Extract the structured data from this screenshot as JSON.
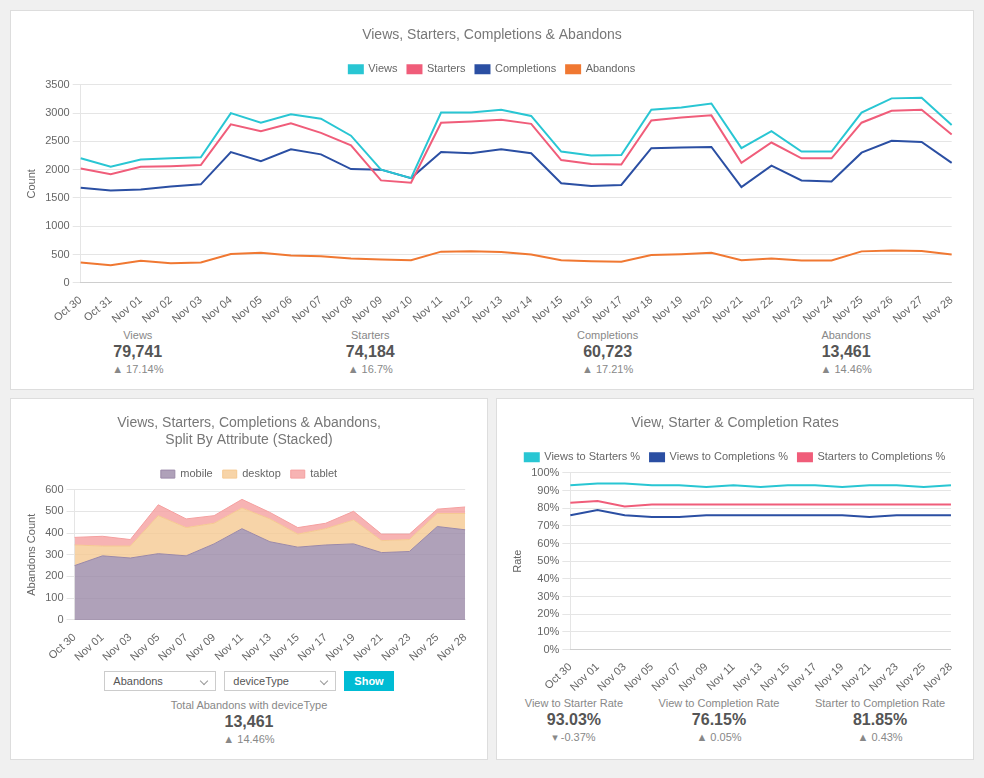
{
  "chart_data": [
    {
      "type": "line",
      "title": "Views, Starters, Completions & Abandons",
      "ylabel": "Count",
      "categories": [
        "Oct 30",
        "Oct 31",
        "Nov 01",
        "Nov 02",
        "Nov 03",
        "Nov 04",
        "Nov 05",
        "Nov 06",
        "Nov 07",
        "Nov 08",
        "Nov 09",
        "Nov 10",
        "Nov 11",
        "Nov 12",
        "Nov 13",
        "Nov 14",
        "Nov 15",
        "Nov 16",
        "Nov 17",
        "Nov 18",
        "Nov 19",
        "Nov 20",
        "Nov 21",
        "Nov 22",
        "Nov 23",
        "Nov 24",
        "Nov 25",
        "Nov 26",
        "Nov 27",
        "Nov 28"
      ],
      "series": [
        {
          "name": "Views",
          "color": "#29c6d3",
          "values": [
            2200,
            2050,
            2180,
            2200,
            2220,
            3000,
            2830,
            2980,
            2900,
            2600,
            2000,
            1850,
            3010,
            3010,
            3060,
            2950,
            2320,
            2250,
            2260,
            3060,
            3100,
            3170,
            2380,
            2680,
            2320,
            2320,
            3010,
            3260,
            3270,
            2790
          ]
        },
        {
          "name": "Starters",
          "color": "#f05d7a",
          "values": [
            2020,
            1920,
            2050,
            2060,
            2080,
            2800,
            2680,
            2820,
            2650,
            2430,
            1810,
            1770,
            2830,
            2850,
            2880,
            2810,
            2170,
            2100,
            2090,
            2870,
            2920,
            2960,
            2120,
            2480,
            2200,
            2200,
            2830,
            3040,
            3060,
            2620
          ]
        },
        {
          "name": "Completions",
          "color": "#2b4fa3",
          "values": [
            1680,
            1630,
            1650,
            1700,
            1740,
            2310,
            2150,
            2360,
            2270,
            2010,
            2000,
            1850,
            2310,
            2290,
            2360,
            2290,
            1760,
            1710,
            1730,
            2380,
            2390,
            2400,
            1690,
            2070,
            1810,
            1790,
            2300,
            2510,
            2490,
            2120
          ]
        },
        {
          "name": "Abandons",
          "color": "#f07832",
          "values": [
            360,
            310,
            390,
            345,
            360,
            510,
            530,
            480,
            470,
            430,
            410,
            400,
            550,
            555,
            545,
            500,
            400,
            380,
            370,
            490,
            505,
            530,
            400,
            430,
            395,
            395,
            555,
            570,
            560,
            500
          ]
        }
      ],
      "ylim": [
        0,
        3500
      ],
      "yticks": [
        0,
        500,
        1000,
        1500,
        2000,
        2500,
        3000,
        3500
      ],
      "grid": true,
      "legend": "top",
      "annotations": [
        [
          "Views",
          "79,741",
          "▲ 17.14%"
        ],
        [
          "Starters",
          "74,184",
          "▲ 16.7%"
        ],
        [
          "Completions",
          "60,723",
          "▲ 17.21%"
        ],
        [
          "Abandons",
          "13,461",
          "▲ 14.46%"
        ]
      ]
    },
    {
      "type": "area",
      "title": "Views, Starters, Completions & Abandons,\nSplit By Attribute (Stacked)",
      "ylabel": "Abandons Count",
      "subtitle": [
        "Abandons",
        "deviceType",
        "Show"
      ],
      "categories": [
        "Oct 30",
        "Nov 01",
        "Nov 03",
        "Nov 05",
        "Nov 07",
        "Nov 09",
        "Nov 11",
        "Nov 13",
        "Nov 15",
        "Nov 17",
        "Nov 19",
        "Nov 21",
        "Nov 23",
        "Nov 25",
        "Nov 28"
      ],
      "series": [
        {
          "name": "mobile",
          "color": "#9b89a8",
          "values": [
            250,
            295,
            285,
            305,
            295,
            350,
            420,
            360,
            335,
            345,
            350,
            310,
            315,
            430,
            415
          ]
        },
        {
          "name": "desktop",
          "color": "#f5c992",
          "values": [
            95,
            45,
            55,
            175,
            130,
            95,
            95,
            105,
            60,
            75,
            110,
            55,
            55,
            60,
            75
          ]
        },
        {
          "name": "tablet",
          "color": "#f5a0a0",
          "values": [
            35,
            45,
            30,
            50,
            40,
            35,
            40,
            30,
            30,
            25,
            40,
            30,
            25,
            20,
            30
          ]
        }
      ],
      "stacked": true,
      "ylim": [
        0,
        600
      ],
      "yticks": [
        0,
        100,
        200,
        300,
        400,
        500,
        600
      ],
      "grid": true,
      "legend": "top",
      "annotations": [
        [
          "Total Abandons with deviceType",
          "13,461",
          "▲ 14.46%"
        ]
      ]
    },
    {
      "type": "line",
      "title": "View, Starter & Completion Rates",
      "ylabel": "Rate",
      "categories": [
        "Oct 30",
        "Nov 01",
        "Nov 03",
        "Nov 05",
        "Nov 07",
        "Nov 09",
        "Nov 11",
        "Nov 13",
        "Nov 15",
        "Nov 17",
        "Nov 19",
        "Nov 21",
        "Nov 23",
        "Nov 25",
        "Nov 28"
      ],
      "series": [
        {
          "name": "Views to Starters %",
          "color": "#29c6d3",
          "values": [
            93,
            94,
            94,
            93,
            93,
            92,
            93,
            92,
            93,
            93,
            92,
            93,
            93,
            92,
            93
          ]
        },
        {
          "name": "Views to Completions %",
          "color": "#2b4fa3",
          "values": [
            76,
            79,
            76,
            75,
            75,
            76,
            76,
            76,
            76,
            76,
            76,
            75,
            76,
            76,
            76
          ]
        },
        {
          "name": "Starters to Completions %",
          "color": "#f05d7a",
          "values": [
            83,
            84,
            81,
            82,
            82,
            82,
            82,
            82,
            82,
            82,
            82,
            82,
            82,
            82,
            82
          ]
        }
      ],
      "ylim": [
        0,
        100
      ],
      "yticks": [
        {
          "value": 0,
          "label": "0%"
        },
        {
          "value": 10,
          "label": "10%"
        },
        {
          "value": 20,
          "label": "20%"
        },
        {
          "value": 30,
          "label": "30%"
        },
        {
          "value": 40,
          "label": "40%"
        },
        {
          "value": 50,
          "label": "50%"
        },
        {
          "value": 60,
          "label": "60%"
        },
        {
          "value": 70,
          "label": "70%"
        },
        {
          "value": 80,
          "label": "80%"
        },
        {
          "value": 90,
          "label": "90%"
        },
        {
          "value": 100,
          "label": "100%"
        }
      ],
      "grid": true,
      "legend": "top",
      "annotations": [
        [
          "View to Starter Rate",
          "93.03%",
          "▾ -0.37%"
        ],
        [
          "View to Completion Rate",
          "76.15%",
          "▲ 0.05%"
        ],
        [
          "Starter to Completion Rate",
          "81.85%",
          "▲ 0.43%"
        ]
      ]
    }
  ]
}
